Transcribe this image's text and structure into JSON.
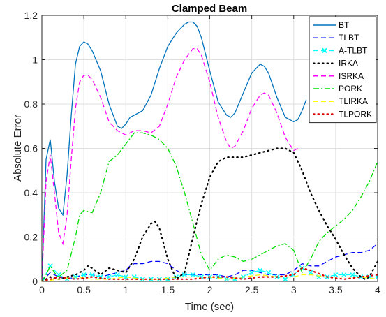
{
  "chart_data": {
    "type": "line",
    "title": "Clamped Beam",
    "xlabel": "Time (sec)",
    "ylabel": "Absolute Error",
    "xlim": [
      0,
      4
    ],
    "ylim": [
      0,
      1.2
    ],
    "xticks": [
      0,
      0.5,
      1,
      1.5,
      2,
      2.5,
      3,
      3.5,
      4
    ],
    "yticks": [
      0,
      0.2,
      0.4,
      0.6,
      0.8,
      1,
      1.2
    ],
    "xtick_labels": [
      "0",
      "0.5",
      "1",
      "1.5",
      "2",
      "2.5",
      "3",
      "3.5",
      "4"
    ],
    "ytick_labels": [
      "0",
      "0.2",
      "0.4",
      "0.6",
      "0.8",
      "1",
      "1.2"
    ],
    "grid": true,
    "legend_position": "top-right",
    "series": [
      {
        "name": "BT",
        "color": "#0072BD",
        "style": "solid",
        "marker": "none",
        "x": [
          0,
          0.05,
          0.1,
          0.15,
          0.2,
          0.25,
          0.3,
          0.35,
          0.4,
          0.45,
          0.5,
          0.55,
          0.6,
          0.7,
          0.8,
          0.9,
          0.95,
          1.0,
          1.05,
          1.1,
          1.2,
          1.3,
          1.4,
          1.5,
          1.6,
          1.7,
          1.75,
          1.8,
          1.85,
          1.9,
          2.0,
          2.1,
          2.2,
          2.25,
          2.3,
          2.4,
          2.5,
          2.6,
          2.65,
          2.7,
          2.8,
          2.9,
          3.0,
          3.05,
          3.1,
          3.15
        ],
        "y": [
          0,
          0.55,
          0.64,
          0.45,
          0.33,
          0.3,
          0.48,
          0.75,
          0.98,
          1.06,
          1.08,
          1.07,
          1.04,
          0.95,
          0.8,
          0.7,
          0.69,
          0.71,
          0.74,
          0.75,
          0.77,
          0.84,
          0.96,
          1.06,
          1.12,
          1.16,
          1.17,
          1.17,
          1.15,
          1.1,
          0.95,
          0.81,
          0.75,
          0.74,
          0.76,
          0.85,
          0.94,
          0.98,
          0.97,
          0.94,
          0.83,
          0.74,
          0.72,
          0.73,
          0.77,
          0.82
        ]
      },
      {
        "name": "TLBT",
        "color": "#0000FF",
        "style": "dash",
        "marker": "none",
        "x": [
          0,
          0.1,
          0.2,
          0.3,
          0.4,
          0.5,
          0.6,
          0.7,
          0.8,
          0.9,
          1.0,
          1.05,
          1.1,
          1.2,
          1.3,
          1.4,
          1.5,
          1.6,
          1.7,
          1.8,
          1.9,
          2.0,
          2.1,
          2.2,
          2.3,
          2.4,
          2.5,
          2.6,
          2.7,
          2.8,
          2.9,
          3.0,
          3.1,
          3.2,
          3.3,
          3.4,
          3.5,
          3.6,
          3.7,
          3.8,
          3.9,
          4.0
        ],
        "y": [
          0,
          0.04,
          0.02,
          0.01,
          0.02,
          0.03,
          0.03,
          0.02,
          0.03,
          0.04,
          0.05,
          0.07,
          0.08,
          0.08,
          0.09,
          0.09,
          0.08,
          0.05,
          0.03,
          0.03,
          0.03,
          0.03,
          0.03,
          0.02,
          0.03,
          0.05,
          0.05,
          0.04,
          0.03,
          0.03,
          0.03,
          0.05,
          0.08,
          0.07,
          0.07,
          0.09,
          0.11,
          0.12,
          0.13,
          0.13,
          0.14,
          0.17
        ]
      },
      {
        "name": "A-TLBT",
        "color": "#00FFFF",
        "style": "dash",
        "marker": "x",
        "x": [
          0,
          0.1,
          0.2,
          0.3,
          0.4,
          0.5,
          0.6,
          0.7,
          0.8,
          0.9,
          1.0,
          1.1,
          1.2,
          1.3,
          1.4,
          1.5,
          1.6,
          1.7,
          1.8,
          1.9,
          2.0,
          2.1,
          2.2,
          2.3,
          2.4,
          2.5,
          2.6,
          2.7,
          2.8,
          2.9,
          3.0,
          3.1,
          3.2,
          3.3,
          3.4,
          3.5,
          3.6,
          3.7,
          3.8,
          3.9,
          4.0
        ],
        "y": [
          0,
          0.07,
          0.03,
          0.01,
          0.02,
          0.03,
          0.03,
          0.02,
          0.02,
          0.03,
          0.02,
          0.02,
          0.01,
          0.01,
          0.01,
          0.01,
          0.02,
          0.03,
          0.03,
          0.02,
          0.02,
          0.02,
          0.01,
          0.01,
          0.02,
          0.04,
          0.05,
          0.04,
          0.02,
          0.01,
          0.03,
          0.06,
          0.04,
          0.02,
          0.02,
          0.03,
          0.03,
          0.03,
          0.02,
          0.02,
          0.02
        ]
      },
      {
        "name": "IRKA",
        "color": "#000000",
        "style": "dot",
        "marker": "none",
        "x": [
          0,
          0.1,
          0.2,
          0.3,
          0.4,
          0.5,
          0.55,
          0.6,
          0.7,
          0.8,
          0.9,
          1.0,
          1.1,
          1.2,
          1.3,
          1.35,
          1.4,
          1.5,
          1.6,
          1.7,
          1.8,
          1.9,
          2.0,
          2.1,
          2.2,
          2.3,
          2.4,
          2.5,
          2.6,
          2.7,
          2.8,
          2.9,
          3.0,
          3.1,
          3.2,
          3.3,
          3.4,
          3.5,
          3.6,
          3.7,
          3.8,
          3.85,
          3.9,
          4.0
        ],
        "y": [
          0,
          0.02,
          0.01,
          0.02,
          0.03,
          0.05,
          0.07,
          0.06,
          0.03,
          0.06,
          0.05,
          0.04,
          0.1,
          0.2,
          0.26,
          0.27,
          0.24,
          0.1,
          0.01,
          0.04,
          0.2,
          0.35,
          0.47,
          0.54,
          0.56,
          0.56,
          0.56,
          0.57,
          0.58,
          0.59,
          0.6,
          0.6,
          0.58,
          0.5,
          0.4,
          0.32,
          0.25,
          0.19,
          0.12,
          0.06,
          0.02,
          0.01,
          0.02,
          0.09
        ]
      },
      {
        "name": "ISRKA",
        "color": "#FF00FF",
        "style": "dash",
        "marker": "none",
        "x": [
          0,
          0.05,
          0.1,
          0.15,
          0.2,
          0.25,
          0.3,
          0.35,
          0.4,
          0.45,
          0.5,
          0.55,
          0.6,
          0.7,
          0.8,
          0.9,
          1.0,
          1.1,
          1.2,
          1.3,
          1.4,
          1.5,
          1.6,
          1.7,
          1.8,
          1.85,
          1.9,
          2.0,
          2.1,
          2.2,
          2.25,
          2.3,
          2.4,
          2.5,
          2.6,
          2.65,
          2.7,
          2.8,
          2.9,
          3.0,
          3.05
        ],
        "y": [
          0,
          0.45,
          0.57,
          0.4,
          0.22,
          0.17,
          0.3,
          0.55,
          0.78,
          0.9,
          0.93,
          0.93,
          0.91,
          0.83,
          0.72,
          0.68,
          0.66,
          0.68,
          0.68,
          0.67,
          0.7,
          0.8,
          0.92,
          1.0,
          1.05,
          1.05,
          1.02,
          0.9,
          0.74,
          0.63,
          0.6,
          0.61,
          0.68,
          0.78,
          0.84,
          0.85,
          0.84,
          0.76,
          0.65,
          0.59,
          0.6
        ]
      },
      {
        "name": "PORK",
        "color": "#00DD00",
        "style": "dashdot",
        "marker": "none",
        "x": [
          0,
          0.05,
          0.1,
          0.15,
          0.2,
          0.3,
          0.4,
          0.45,
          0.5,
          0.6,
          0.7,
          0.8,
          0.9,
          1.0,
          1.1,
          1.2,
          1.3,
          1.4,
          1.5,
          1.6,
          1.7,
          1.8,
          1.9,
          2.0,
          2.1,
          2.2,
          2.3,
          2.4,
          2.5,
          2.6,
          2.7,
          2.8,
          2.9,
          3.0,
          3.1,
          3.2,
          3.3,
          3.4,
          3.5,
          3.6,
          3.7,
          3.8,
          3.9,
          4.0
        ],
        "y": [
          0,
          0.03,
          0.07,
          0.04,
          0.02,
          0.05,
          0.2,
          0.3,
          0.32,
          0.31,
          0.4,
          0.54,
          0.57,
          0.62,
          0.67,
          0.67,
          0.66,
          0.64,
          0.6,
          0.52,
          0.4,
          0.26,
          0.12,
          0.05,
          0.1,
          0.12,
          0.11,
          0.09,
          0.1,
          0.12,
          0.14,
          0.16,
          0.17,
          0.14,
          0.04,
          0.1,
          0.18,
          0.22,
          0.25,
          0.28,
          0.32,
          0.38,
          0.45,
          0.54
        ]
      },
      {
        "name": "TLIRKA",
        "color": "#FFFF00",
        "style": "dash",
        "marker": "none",
        "x": [
          0,
          0.2,
          0.4,
          0.6,
          0.8,
          1.0,
          1.2,
          1.4,
          1.6,
          1.8,
          2.0,
          2.2,
          2.4,
          2.6,
          2.8,
          3.0,
          3.1,
          3.2,
          3.4,
          3.6,
          3.8,
          4.0
        ],
        "y": [
          0,
          0.01,
          0.02,
          0.01,
          0.01,
          0.02,
          0.01,
          0.01,
          0.02,
          0.02,
          0.02,
          0.01,
          0.02,
          0.03,
          0.02,
          0.02,
          0.03,
          0.03,
          0.02,
          0.02,
          0.02,
          0.01
        ]
      },
      {
        "name": "TLPORK",
        "color": "#DD0000",
        "style": "dot",
        "marker": "none",
        "x": [
          0,
          0.2,
          0.4,
          0.6,
          0.8,
          1.0,
          1.2,
          1.4,
          1.6,
          1.8,
          2.0,
          2.2,
          2.4,
          2.6,
          2.8,
          3.0,
          3.1,
          3.2,
          3.4,
          3.6,
          3.8,
          4.0
        ],
        "y": [
          0,
          0.02,
          0.01,
          0.02,
          0.01,
          0.01,
          0.01,
          0.01,
          0.01,
          0.01,
          0.02,
          0.02,
          0.01,
          0.02,
          0.02,
          0.03,
          0.06,
          0.05,
          0.02,
          0.01,
          0.02,
          0.03
        ]
      }
    ]
  }
}
